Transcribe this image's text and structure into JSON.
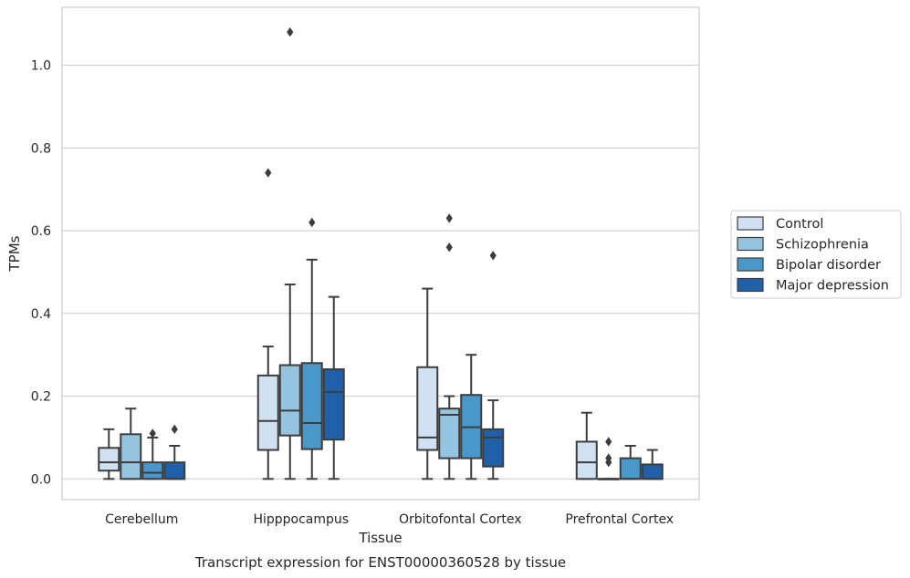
{
  "chart_data": {
    "type": "boxplot",
    "title": "Transcript expression for ENST00000360528 by tissue",
    "xlabel": "Tissue",
    "ylabel": "TPMs",
    "ylim": [
      -0.05,
      1.14
    ],
    "yticks": [
      "0.0",
      "0.2",
      "0.4",
      "0.6",
      "0.8",
      "1.0"
    ],
    "grid": "horizontal",
    "legend_position": "right",
    "categories": [
      "Cerebellum",
      "Hipppocampus",
      "Orbitofontal Cortex",
      "Prefrontal Cortex"
    ],
    "series": [
      {
        "name": "Control",
        "color": "#d0e1f2",
        "boxes": [
          {
            "min": 0.0,
            "q1": 0.02,
            "median": 0.04,
            "q3": 0.075,
            "max": 0.12,
            "outliers": []
          },
          {
            "min": 0.0,
            "q1": 0.07,
            "median": 0.14,
            "q3": 0.25,
            "max": 0.32,
            "outliers": [
              0.74
            ]
          },
          {
            "min": 0.0,
            "q1": 0.07,
            "median": 0.1,
            "q3": 0.27,
            "max": 0.46,
            "outliers": []
          },
          {
            "min": 0.0,
            "q1": 0.0,
            "median": 0.04,
            "q3": 0.09,
            "max": 0.16,
            "outliers": []
          }
        ]
      },
      {
        "name": "Schizophrenia",
        "color": "#94c4df",
        "boxes": [
          {
            "min": 0.0,
            "q1": 0.0,
            "median": 0.04,
            "q3": 0.108,
            "max": 0.17,
            "outliers": []
          },
          {
            "min": 0.0,
            "q1": 0.105,
            "median": 0.165,
            "q3": 0.275,
            "max": 0.47,
            "outliers": [
              1.08
            ]
          },
          {
            "min": 0.0,
            "q1": 0.05,
            "median": 0.155,
            "q3": 0.17,
            "max": 0.2,
            "outliers": [
              0.56,
              0.63
            ]
          },
          {
            "min": 0.0,
            "q1": 0.0,
            "median": 0.0,
            "q3": 0.0,
            "max": 0.0,
            "outliers": [
              0.04,
              0.05,
              0.09
            ]
          }
        ]
      },
      {
        "name": "Bipolar disorder",
        "color": "#4a98c9",
        "boxes": [
          {
            "min": 0.0,
            "q1": 0.0,
            "median": 0.015,
            "q3": 0.04,
            "max": 0.1,
            "outliers": [
              0.11
            ]
          },
          {
            "min": 0.0,
            "q1": 0.072,
            "median": 0.135,
            "q3": 0.28,
            "max": 0.53,
            "outliers": [
              0.62
            ]
          },
          {
            "min": 0.0,
            "q1": 0.05,
            "median": 0.125,
            "q3": 0.203,
            "max": 0.3,
            "outliers": []
          },
          {
            "min": 0.0,
            "q1": 0.0,
            "median": 0.0,
            "q3": 0.05,
            "max": 0.08,
            "outliers": []
          }
        ]
      },
      {
        "name": "Major depression",
        "color": "#2060a8",
        "boxes": [
          {
            "min": 0.0,
            "q1": 0.0,
            "median": 0.0,
            "q3": 0.04,
            "max": 0.08,
            "outliers": [
              0.12
            ]
          },
          {
            "min": 0.0,
            "q1": 0.095,
            "median": 0.21,
            "q3": 0.265,
            "max": 0.44,
            "outliers": []
          },
          {
            "min": 0.0,
            "q1": 0.03,
            "median": 0.1,
            "q3": 0.12,
            "max": 0.19,
            "outliers": [
              0.54
            ]
          },
          {
            "min": 0.0,
            "q1": 0.0,
            "median": 0.0,
            "q3": 0.035,
            "max": 0.07,
            "outliers": []
          }
        ]
      }
    ]
  }
}
